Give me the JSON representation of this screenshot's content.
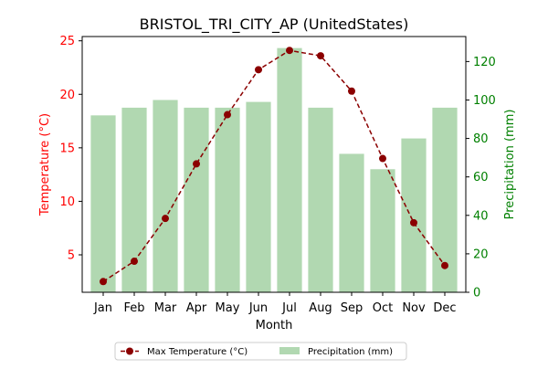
{
  "chart_data": {
    "type": "bar",
    "title": "BRISTOL_TRI_CITY_AP (UnitedStates)",
    "xlabel": "Month",
    "categories": [
      "Jan",
      "Feb",
      "Mar",
      "Apr",
      "May",
      "Jun",
      "Jul",
      "Aug",
      "Sep",
      "Oct",
      "Nov",
      "Dec"
    ],
    "y_left": {
      "label": "Temperature (°C)",
      "ticks": [
        5,
        10,
        15,
        20,
        25
      ],
      "ylim": [
        1.5,
        25.4
      ],
      "color": "#ff0000"
    },
    "y_right": {
      "label": "Precipitation (mm)",
      "ticks": [
        0,
        20,
        40,
        60,
        80,
        100,
        120
      ],
      "ylim": [
        0,
        133
      ],
      "color": "#008000"
    },
    "series": [
      {
        "name": "Max Temperature (°C)",
        "type": "line",
        "axis": "left",
        "color": "#8b0000",
        "values": [
          2.5,
          4.4,
          8.4,
          13.5,
          18.1,
          22.3,
          24.1,
          23.6,
          20.3,
          14.0,
          8.0,
          4.0
        ]
      },
      {
        "name": "Precipitation (mm)",
        "type": "bar",
        "axis": "right",
        "color": "#b1d8b1",
        "values": [
          92,
          96,
          100,
          96,
          96,
          99,
          127,
          96,
          72,
          64,
          80,
          96
        ]
      }
    ],
    "legend": {
      "position": "bottom-center",
      "entries": [
        "Max Temperature (°C)",
        "Precipitation (mm)"
      ]
    },
    "grid": false
  }
}
